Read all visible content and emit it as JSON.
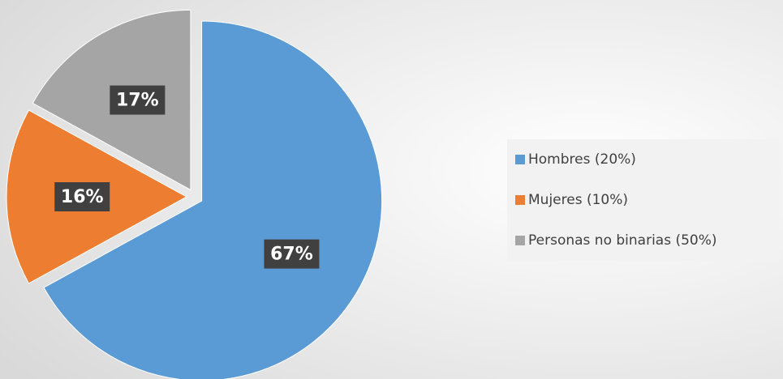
{
  "chart_data": {
    "type": "pie",
    "categories": [
      "Hombres  (20%)",
      "Mujeres (10%)",
      "Personas no binarias (50%)"
    ],
    "values": [
      67,
      16,
      17
    ],
    "value_labels": [
      "67%",
      "16%",
      "17%"
    ],
    "colors": [
      "#5b9bd5",
      "#ed7d31",
      "#a5a5a5"
    ],
    "legend": "right"
  }
}
